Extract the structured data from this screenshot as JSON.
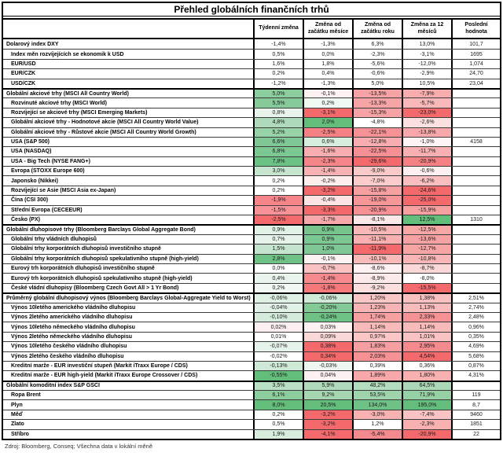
{
  "title": "Přehled globálních finančních trhů",
  "columns": [
    "Týdenní změna",
    "Změna od začátku měsíce",
    "Změna od začátku roku",
    "Změna za 12 měsíců",
    "Poslední hodnota"
  ],
  "footer": "Zdroj: Bloomberg, Conseq; Všechna data v lokální měně",
  "colors": {
    "positive_strong": "#63BE7B",
    "negative_strong": "#F4696C",
    "neutral": "#FFFFFF",
    "grid_line": "#000000"
  },
  "rows": [
    {
      "label": "Dolarový index DXY",
      "indent": false,
      "section_start": false,
      "changes": [
        "-1,4%",
        "-1,3%",
        "6,3%",
        "13,0%"
      ],
      "cell_colors": [
        "",
        "",
        "",
        ""
      ],
      "last": "101,7"
    },
    {
      "label": "Index měn rozvíjejících se ekonomik k USD",
      "indent": true,
      "section_start": false,
      "changes": [
        "0,5%",
        "0,0%",
        "-2,3%",
        "-3,1%"
      ],
      "cell_colors": [
        "",
        "",
        "",
        ""
      ],
      "last": "1695"
    },
    {
      "label": "EUR/USD",
      "indent": true,
      "section_start": false,
      "changes": [
        "1,6%",
        "1,8%",
        "-5,6%",
        "-12,0%"
      ],
      "cell_colors": [
        "",
        "",
        "",
        ""
      ],
      "last": "1,074"
    },
    {
      "label": "EUR/CZK",
      "indent": true,
      "section_start": false,
      "changes": [
        "0,2%",
        "0,4%",
        "-0,6%",
        "-2,9%"
      ],
      "cell_colors": [
        "",
        "",
        "",
        ""
      ],
      "last": "24,70"
    },
    {
      "label": "USD/CZK",
      "indent": true,
      "section_start": false,
      "changes": [
        "-1,2%",
        "-1,3%",
        "5,0%",
        "10,5%"
      ],
      "cell_colors": [
        "",
        "",
        "",
        ""
      ],
      "last": "23,04"
    },
    {
      "label": "Globální akciové trhy (MSCI All Country World)",
      "indent": false,
      "section_start": true,
      "changes": [
        "5,0%",
        "-0,1%",
        "-13,5%",
        "-7,9%"
      ],
      "cell_colors": [
        "#8CCD9E",
        "#FDF2F2",
        "#F7A2A4",
        "#F8ACAE"
      ],
      "last": ""
    },
    {
      "label": "Rozvinuté akciové trhy (MSCI World)",
      "indent": true,
      "section_start": false,
      "changes": [
        "5,5%",
        "0,2%",
        "-13,3%",
        "-5,7%"
      ],
      "cell_colors": [
        "#86CA99",
        "#EFF8F1",
        "#F7A4A6",
        "#F9B8BA"
      ],
      "last": ""
    },
    {
      "label": "Rozvíjející se akciové trhy (MSCI Emerging Markets)",
      "indent": true,
      "section_start": false,
      "changes": [
        "0,8%",
        "-3,1%",
        "-15,3%",
        "-23,0%"
      ],
      "cell_colors": [
        "#E8F4EB",
        "#F4696C",
        "#F7A2A4",
        "#F4696C"
      ],
      "last": ""
    },
    {
      "label": "Globální akciové trhy - Hodnotové akcie (MSCI All Country World Value)",
      "indent": true,
      "section_start": false,
      "changes": [
        "4,8%",
        "2,0%",
        "-4,8%",
        "-2,6%"
      ],
      "cell_colors": [
        "#AEDABB",
        "#63BE7B",
        "",
        "#FBE0E0"
      ],
      "last": ""
    },
    {
      "label": "Globální akciové trhy - Růstové akcie (MSCI All Country World Growth)",
      "indent": true,
      "section_start": false,
      "changes": [
        "5,2%",
        "-2,5%",
        "-22,1%",
        "-13,8%"
      ],
      "cell_colors": [
        "#98D3A8",
        "#F58185",
        "#F69296",
        "#F8A8AA"
      ],
      "last": ""
    },
    {
      "label": "USA (S&P 500)",
      "indent": true,
      "section_start": false,
      "changes": [
        "6,6%",
        "0,6%",
        "-12,8%",
        "-1,0%"
      ],
      "cell_colors": [
        "#7FC794",
        "#D7EDDE",
        "#F8AEB0",
        "#FDF4F4"
      ],
      "last": "4158"
    },
    {
      "label": "USA (NASDAQ)",
      "indent": true,
      "section_start": false,
      "changes": [
        "6,8%",
        "-1,6%",
        "-22,5%",
        "-11,7%"
      ],
      "cell_colors": [
        "#7CC892",
        "#F8AEB0",
        "#F69094",
        "#F8B0B2"
      ],
      "last": ""
    },
    {
      "label": "USA - Big Tech (NYSE FANG+)",
      "indent": true,
      "section_start": false,
      "changes": [
        "7,8%",
        "-2,3%",
        "-29,6%",
        "-20,9%"
      ],
      "cell_colors": [
        "#6CC285",
        "#F58589",
        "#F4696C",
        "#F58185"
      ],
      "last": ""
    },
    {
      "label": "Evropa (STOXX Europe 600)",
      "indent": true,
      "section_start": false,
      "changes": [
        "3,0%",
        "-1,4%",
        "-9,0%",
        "-0,6%"
      ],
      "cell_colors": [
        "#C6E5CF",
        "#F8B2B4",
        "#FACACA",
        "#FDF0F0"
      ],
      "last": ""
    },
    {
      "label": "Japonsko (Nikkei)",
      "indent": true,
      "section_start": false,
      "changes": [
        "0,2%",
        "-0,2%",
        "-7,0%",
        "-6,2%"
      ],
      "cell_colors": [
        "",
        "#FDEDED",
        "#FACCCC",
        "#F9BEC0"
      ],
      "last": ""
    },
    {
      "label": "Rozvíjející se Asie (MSCI Asia ex-Japan)",
      "indent": true,
      "section_start": false,
      "changes": [
        "0,2%",
        "-3,2%",
        "-15,8%",
        "-24,6%"
      ],
      "cell_colors": [
        "",
        "#F4696C",
        "#F7A0A2",
        "#F4696C"
      ],
      "last": ""
    },
    {
      "label": "Čína (CSI 300)",
      "indent": true,
      "section_start": false,
      "changes": [
        "-1,9%",
        "-0,4%",
        "-19,0%",
        "-25,0%"
      ],
      "cell_colors": [
        "#F58589",
        "#FCE4E4",
        "#F69698",
        "#F4696C"
      ],
      "last": ""
    },
    {
      "label": "Střední Evropa (CECEEUR)",
      "indent": true,
      "section_start": false,
      "changes": [
        "-1,5%",
        "-3,3%",
        "-20,9%",
        "-15,9%"
      ],
      "cell_colors": [
        "#F79296",
        "#F4696C",
        "#F69094",
        "#F7A0A2"
      ],
      "last": ""
    },
    {
      "label": "Česko (PX)",
      "indent": true,
      "section_start": false,
      "changes": [
        "-2,5%",
        "-1,7%",
        "-8,1%",
        "12,5%"
      ],
      "cell_colors": [
        "#F4696C",
        "#F7A8AA",
        "#FCE8E8",
        "#63BE7B"
      ],
      "last": "1310"
    },
    {
      "label": "Globální dluhopisové trhy (Bloomberg Barclays Global Aggregate Bond)",
      "indent": false,
      "section_start": true,
      "changes": [
        "0,9%",
        "0,9%",
        "-10,5%",
        "-12,5%"
      ],
      "cell_colors": [
        "#E0F1E5",
        "#77C58D",
        "#F9B8B8",
        "#F7A6A6"
      ],
      "last": ""
    },
    {
      "label": "Globální trhy vládních dluhopisů",
      "indent": true,
      "section_start": false,
      "changes": [
        "0,7%",
        "0,9%",
        "-11,1%",
        "-13,6%"
      ],
      "cell_colors": [
        "#E6F3EA",
        "#7CC892",
        "#F8B0B0",
        "#F7A2A2"
      ],
      "last": ""
    },
    {
      "label": "Globální trhy korporátních dluhopisů investičního stupně",
      "indent": true,
      "section_start": false,
      "changes": [
        "1,5%",
        "1,0%",
        "-11,9%",
        "-12,7%"
      ],
      "cell_colors": [
        "#C4E4CD",
        "#7FC794",
        "#F4696C",
        "#F7A4A4"
      ],
      "last": ""
    },
    {
      "label": "Globální trhy korporátních dluhopisů spekulativního stupně (high-yield)",
      "indent": true,
      "section_start": false,
      "changes": [
        "2,8%",
        "-0,1%",
        "-10,1%",
        "-10,8%"
      ],
      "cell_colors": [
        "#6FC286",
        "#FDF2F2",
        "#F9BABA",
        "#F9B6B6"
      ],
      "last": ""
    },
    {
      "label": "Eurový trh korporátních dluhopisů investičního stupně",
      "indent": true,
      "section_start": false,
      "changes": [
        "0,0%",
        "-0,7%",
        "-8,6%",
        "-8,7%"
      ],
      "cell_colors": [
        "",
        "#FAC2C2",
        "#FDF1F1",
        "#FBD8D8"
      ],
      "last": ""
    },
    {
      "label": "Eurový trh korporátních dluhopisů spekulativního stupně (high-yield)",
      "indent": true,
      "section_start": false,
      "changes": [
        "0,4%",
        "-1,4%",
        "-8,9%",
        "-8,0%"
      ],
      "cell_colors": [
        "#E9F4EC",
        "#F58A8E",
        "#FCEAEA",
        ""
      ],
      "last": ""
    },
    {
      "label": "České vládní dluhopisy (Bloomberg Czech Govt All > 1 Yr Bond)",
      "indent": true,
      "section_start": false,
      "changes": [
        "0,2%",
        "-1,8%",
        "-9,2%",
        "-15,5%"
      ],
      "cell_colors": [
        "#F2F9F4",
        "#F5787B",
        "#FBDEDE",
        "#F4696C"
      ],
      "last": ""
    },
    {
      "label": "Průměrný globální dluhopisový výnos (Bloomberg Barclays Global-Aggregate Yield to Worst)",
      "indent": false,
      "section_start": true,
      "changes": [
        "-0,06%",
        "-0,06%",
        "1,20%",
        "1,38%"
      ],
      "cell_colors": [
        "#DFF0E4",
        "#D0EAD8",
        "#F9C6C6",
        "#F9C0C0"
      ],
      "last": "2,51%"
    },
    {
      "label": "Výnos 10letého amerického vládního dluhopisu",
      "indent": true,
      "section_start": false,
      "changes": [
        "-0,04%",
        "-0,20%",
        "1,23%",
        "1,13%"
      ],
      "cell_colors": [
        "#E2F1E7",
        "#84CA97",
        "#F8B4B4",
        "#F9BCBC"
      ],
      "last": "2,74%"
    },
    {
      "label": "Výnos 2letého amerického vládního dluhopisu",
      "indent": true,
      "section_start": false,
      "changes": [
        "-0,10%",
        "-0,24%",
        "1,74%",
        "2,33%"
      ],
      "cell_colors": [
        "#D4EBDB",
        "#6EC285",
        "#F7A0A2",
        "#F69296"
      ],
      "last": "2,48%"
    },
    {
      "label": "Výnos 10letého německého vládního dluhopisu",
      "indent": true,
      "section_start": false,
      "changes": [
        "0,02%",
        "0,03%",
        "1,14%",
        "1,14%"
      ],
      "cell_colors": [
        "#FDEFEF",
        "#FDF1F1",
        "#F9BABA",
        "#F9BABA"
      ],
      "last": "0,96%"
    },
    {
      "label": "Výnos 2letého německého vládního dluhopisu",
      "indent": true,
      "section_start": false,
      "changes": [
        "0,01%",
        "0,09%",
        "0,97%",
        "1,01%"
      ],
      "cell_colors": [
        "",
        "#FBD8D8",
        "#FAC6C6",
        "#F9C2C2"
      ],
      "last": "0,35%"
    },
    {
      "label": "Výnos 10letého českého vládního dluhopisu",
      "indent": true,
      "section_start": false,
      "changes": [
        "-0,07%",
        "0,38%",
        "1,83%",
        "2,95%"
      ],
      "cell_colors": [
        "#E6F3EA",
        "#F4696C",
        "#F79EA0",
        "#F58A8E"
      ],
      "last": "4,69%"
    },
    {
      "label": "Výnos 2letého českého vládního dluhopisu",
      "indent": true,
      "section_start": false,
      "changes": [
        "-0,02%",
        "0,34%",
        "2,03%",
        "4,54%"
      ],
      "cell_colors": [
        "",
        "#F4696C",
        "#F69296",
        "#F4696C"
      ],
      "last": "5,68%"
    },
    {
      "label": "Kreditní marže - EUR investiční stupeň (Markit iTraxx Europe / CDS)",
      "indent": true,
      "section_start": false,
      "changes": [
        "-0,13%",
        "-0,03%",
        "0,39%",
        "0,36%"
      ],
      "cell_colors": [
        "#CFE9D7",
        "#EDF7F0",
        "",
        ""
      ],
      "last": "0,87%"
    },
    {
      "label": "Kreditní marže - EUR high-yield (Markit iTraxx Europe Crossover / CDS)",
      "indent": true,
      "section_start": false,
      "changes": [
        "-0,55%",
        "0,04%",
        "1,89%",
        "1,80%"
      ],
      "cell_colors": [
        "#63BE7B",
        "#FDF0F0",
        "#F8A8AA",
        "#F9B0B0"
      ],
      "last": "4,31%"
    },
    {
      "label": "Globální komoditní index S&P GSCI",
      "indent": false,
      "section_start": true,
      "changes": [
        "3,5%",
        "5,9%",
        "48,2%",
        "64,5%"
      ],
      "cell_colors": [
        "#B9DFC4",
        "#AFDBBC",
        "#B3DDBF",
        "#ABD9B8"
      ],
      "last": ""
    },
    {
      "label": "Ropa Brent",
      "indent": true,
      "section_start": false,
      "changes": [
        "6,1%",
        "9,2%",
        "53,5%",
        "71,9%"
      ],
      "cell_colors": [
        "#8CCD9E",
        "#A5D6B1",
        "#9ED3AC",
        "#96D0A5"
      ],
      "last": "119"
    },
    {
      "label": "Plyn",
      "indent": true,
      "section_start": false,
      "changes": [
        "8,0%",
        "20,5%",
        "134,0%",
        "195,0%"
      ],
      "cell_colors": [
        "#63BE7B",
        "#63BE7B",
        "#6EC285",
        "#63BE7B"
      ],
      "last": "8,7"
    },
    {
      "label": "Měď",
      "indent": true,
      "section_start": false,
      "changes": [
        "0,2%",
        "-3,2%",
        "-3,0%",
        "-7,4%"
      ],
      "cell_colors": [
        "",
        "#F4696C",
        "#F8B2B2",
        "#FAC4C4"
      ],
      "last": "9460"
    },
    {
      "label": "Zlato",
      "indent": true,
      "section_start": false,
      "changes": [
        "0,5%",
        "-3,2%",
        "1,2%",
        "-2,3%"
      ],
      "cell_colors": [
        "",
        "#F4696C",
        "",
        "#F8B0B0"
      ],
      "last": "1851"
    },
    {
      "label": "Stříbro",
      "indent": true,
      "section_start": false,
      "changes": [
        "1,9%",
        "-4,1%",
        "-5,4%",
        "-20,9%"
      ],
      "cell_colors": [
        "#D9EDDF",
        "#F4696C",
        "#F58A8E",
        "#F4696C"
      ],
      "last": "22"
    }
  ]
}
